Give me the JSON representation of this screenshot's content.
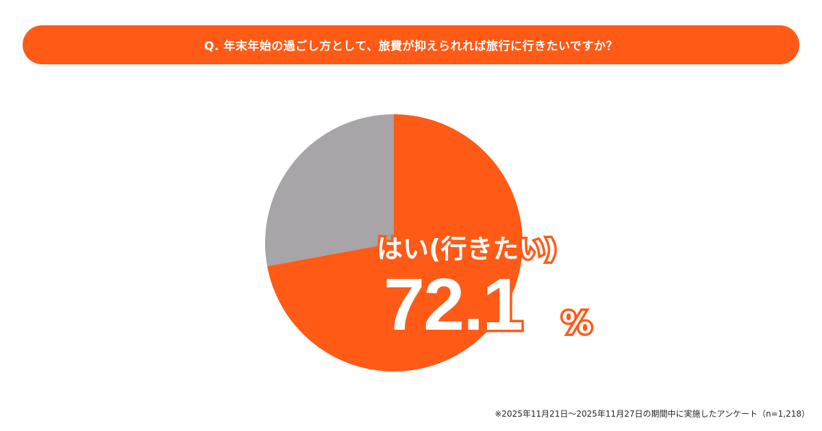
{
  "title": "Q. 年末年始の過ごし方として、旅費が抑えられれば旅行に行きたいですか？",
  "chart_data": {
    "type": "pie",
    "categories": [
      "はい(行きたい)",
      ""
    ],
    "values": [
      72.1,
      27.9
    ],
    "colors": [
      "#FF5A16",
      "#A7A5A8"
    ],
    "start": "top",
    "direction": "clockwise",
    "highlight": {
      "label": "はい(行きたい)",
      "value": "72.1",
      "unit": "%"
    }
  },
  "footnote": "※2025年11月21日～2025年11月27日の期間中に実施したアンケート（n=1,218）"
}
